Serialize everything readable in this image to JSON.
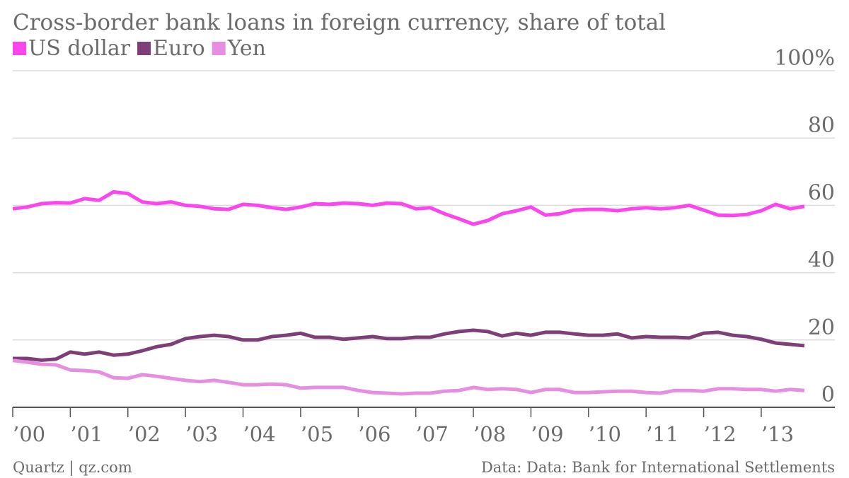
{
  "chart_data": {
    "type": "line",
    "title": "Cross-border bank loans in foreign currency, share of total",
    "source_left": "Quartz | qz.com",
    "source_right": "Data: Data: Bank for International Settlements",
    "categories": [
      "’00",
      null,
      null,
      null,
      "’01",
      null,
      null,
      null,
      "’02",
      null,
      null,
      null,
      "’03",
      null,
      null,
      null,
      "’04",
      null,
      null,
      null,
      "’05",
      null,
      null,
      null,
      "’06",
      null,
      null,
      null,
      "’07",
      null,
      null,
      null,
      "’08",
      null,
      null,
      null,
      "’09",
      null,
      null,
      null,
      "’10",
      null,
      null,
      null,
      "’11",
      null,
      null,
      null,
      "’12",
      null,
      null,
      null,
      "’13",
      null,
      null,
      null
    ],
    "series": [
      {
        "name": "US dollar",
        "color": "#fb46ee",
        "values": [
          59,
          59.5,
          60.5,
          60.8,
          60.7,
          62,
          61.5,
          64,
          63.5,
          61,
          60.5,
          61,
          60,
          59.7,
          59,
          58.8,
          60.3,
          60,
          59.3,
          58.8,
          59.5,
          60.5,
          60.3,
          60.7,
          60.5,
          60,
          60.7,
          60.5,
          59,
          59.3,
          57.5,
          56,
          54.4,
          55.5,
          57.5,
          58.4,
          59.5,
          57.1,
          57.5,
          58.6,
          58.8,
          58.8,
          58.4,
          59,
          59.3,
          59,
          59.3,
          60,
          58.6,
          57.1,
          57,
          57.3,
          58.4,
          60.3,
          59,
          59.7
        ]
      },
      {
        "name": "Euro",
        "color": "#7e3f78",
        "values": [
          14.5,
          14.5,
          14,
          14.3,
          16.4,
          15.8,
          16.4,
          15.5,
          15.8,
          16.8,
          18,
          18.7,
          20.4,
          21,
          21.4,
          21,
          20,
          20,
          21,
          21.4,
          22,
          20.8,
          20.8,
          20.2,
          20.6,
          21,
          20.4,
          20.4,
          20.8,
          20.8,
          21.8,
          22.5,
          22.9,
          22.5,
          21.2,
          22,
          21.4,
          22.3,
          22.3,
          21.8,
          21.4,
          21.4,
          21.8,
          20.6,
          21,
          20.8,
          20.8,
          20.6,
          22,
          22.3,
          21.4,
          21,
          20.2,
          19.1,
          18.7,
          18.3
        ]
      },
      {
        "name": "Yen",
        "color": "#e68fe1",
        "values": [
          13.9,
          13.4,
          12.8,
          12.6,
          11.1,
          10.9,
          10.5,
          8.8,
          8.6,
          9.7,
          9.2,
          8.6,
          8,
          7.6,
          8,
          7.4,
          6.7,
          6.7,
          6.9,
          6.7,
          5.7,
          5.9,
          5.9,
          5.9,
          5,
          4.4,
          4.2,
          4,
          4.2,
          4.2,
          4.8,
          5,
          5.9,
          5.3,
          5.5,
          5.3,
          4.4,
          5.3,
          5.3,
          4.4,
          4.4,
          4.6,
          4.8,
          4.8,
          4.4,
          4.2,
          5,
          5,
          4.8,
          5.5,
          5.5,
          5.3,
          5.3,
          4.8,
          5.3,
          5
        ]
      }
    ],
    "ylim": [
      0,
      100
    ],
    "yticks": [
      0,
      20,
      40,
      60,
      80,
      {
        "value": 100,
        "label": "100%"
      }
    ],
    "grid": true
  }
}
